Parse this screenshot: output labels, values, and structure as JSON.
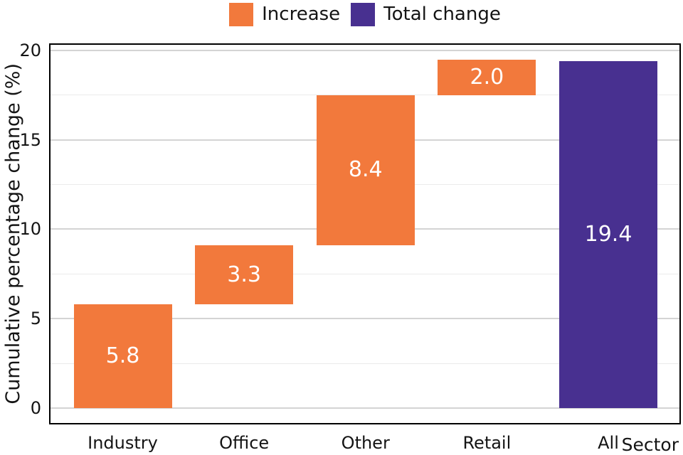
{
  "chart_data": {
    "type": "bar",
    "subtype": "waterfall",
    "title": "",
    "xlabel": "Sector",
    "ylabel": "Cumulative percentage change (%)",
    "categories": [
      "Industry",
      "Office",
      "Other",
      "Retail",
      "All"
    ],
    "bars": [
      {
        "category": "Industry",
        "series": "Increase",
        "start": 0,
        "end": 5.8,
        "label": "5.8"
      },
      {
        "category": "Office",
        "series": "Increase",
        "start": 5.8,
        "end": 9.1,
        "label": "3.3"
      },
      {
        "category": "Other",
        "series": "Increase",
        "start": 9.1,
        "end": 17.5,
        "label": "8.4"
      },
      {
        "category": "Retail",
        "series": "Increase",
        "start": 17.5,
        "end": 19.5,
        "label": "2.0"
      },
      {
        "category": "All",
        "series": "Total change",
        "start": 0,
        "end": 19.4,
        "label": "19.4"
      }
    ],
    "legend": [
      {
        "label": "Increase",
        "color": "#F2793C"
      },
      {
        "label": "Total change",
        "color": "#483090"
      }
    ],
    "legend_position": "top-center",
    "ylim": [
      -0.84,
      20.32
    ],
    "yticks": [
      0,
      5,
      10,
      15,
      20
    ],
    "ytick_labels": [
      "0",
      "5",
      "10",
      "15",
      "20"
    ],
    "minor_yticks": [
      2.5,
      7.5,
      12.5,
      17.5
    ],
    "grid": true,
    "colors": {
      "grid_major": "#d4d4d4",
      "grid_minor": "#ebebeb",
      "axis": "#000000",
      "bar_label": "#ffffff",
      "text": "#141414"
    }
  }
}
